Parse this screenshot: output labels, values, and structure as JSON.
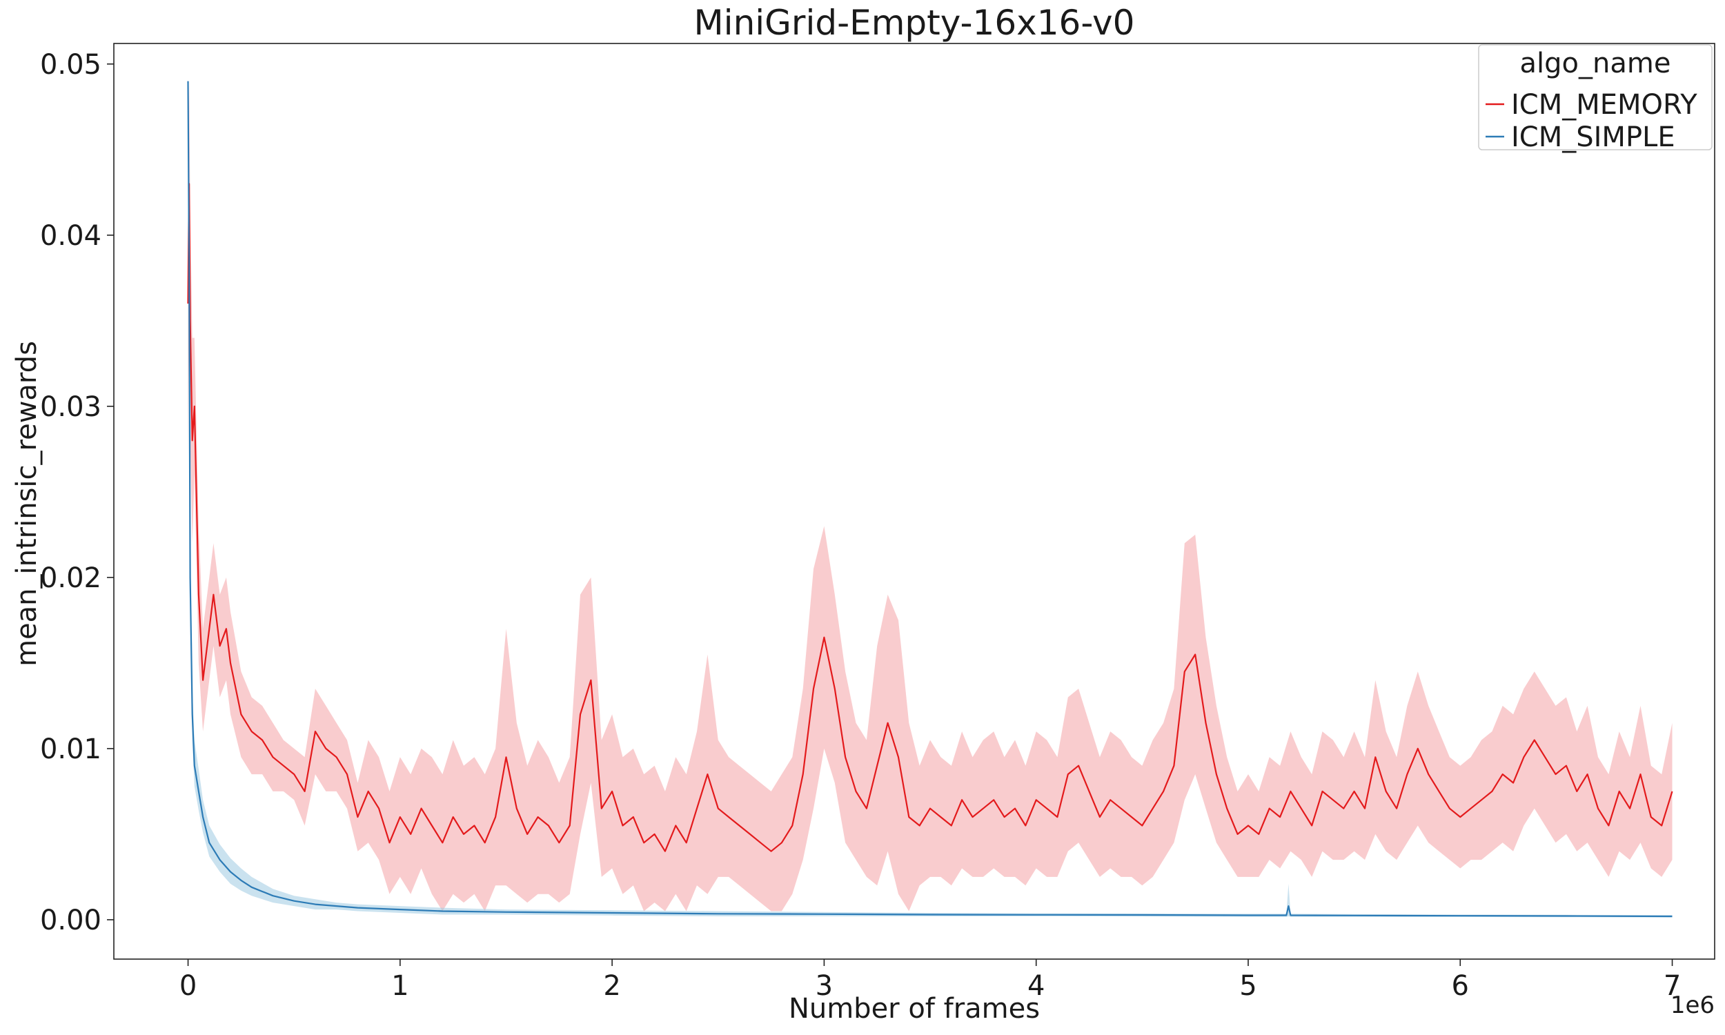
{
  "chart_data": {
    "type": "line",
    "title": "MiniGrid-Empty-16x16-v0",
    "xlabel": "Number of frames",
    "ylabel": "mean_intrinsic_rewards",
    "x_offset_label": "1e6",
    "xlim": [
      -0.35,
      7.2
    ],
    "ylim": [
      -0.0023,
      0.0512
    ],
    "x_ticks": [
      0,
      1,
      2,
      3,
      4,
      5,
      6,
      7
    ],
    "x_tick_labels": [
      "0",
      "1",
      "2",
      "3",
      "4",
      "5",
      "6",
      "7"
    ],
    "y_ticks": [
      0.0,
      0.01,
      0.02,
      0.03,
      0.04,
      0.05
    ],
    "y_tick_labels": [
      "0.00",
      "0.01",
      "0.02",
      "0.03",
      "0.04",
      "0.05"
    ],
    "grid": false,
    "legend": {
      "title": "algo_name",
      "position": "top-right",
      "entries": [
        "ICM_MEMORY",
        "ICM_SIMPLE"
      ]
    },
    "series": [
      {
        "name": "ICM_MEMORY",
        "color": "#e31a1c",
        "band_color": "#f4a3a6",
        "x": [
          0,
          0.005,
          0.01,
          0.02,
          0.03,
          0.05,
          0.07,
          0.1,
          0.12,
          0.15,
          0.18,
          0.2,
          0.25,
          0.3,
          0.35,
          0.4,
          0.45,
          0.5,
          0.55,
          0.6,
          0.65,
          0.7,
          0.75,
          0.8,
          0.85,
          0.9,
          0.95,
          1.0,
          1.05,
          1.1,
          1.15,
          1.2,
          1.25,
          1.3,
          1.35,
          1.4,
          1.45,
          1.5,
          1.55,
          1.6,
          1.65,
          1.7,
          1.75,
          1.8,
          1.85,
          1.9,
          1.95,
          2.0,
          2.05,
          2.1,
          2.15,
          2.2,
          2.25,
          2.3,
          2.35,
          2.4,
          2.45,
          2.5,
          2.55,
          2.6,
          2.65,
          2.7,
          2.75,
          2.8,
          2.85,
          2.9,
          2.95,
          3.0,
          3.05,
          3.1,
          3.15,
          3.2,
          3.25,
          3.3,
          3.35,
          3.4,
          3.45,
          3.5,
          3.55,
          3.6,
          3.65,
          3.7,
          3.75,
          3.8,
          3.85,
          3.9,
          3.95,
          4.0,
          4.05,
          4.1,
          4.15,
          4.2,
          4.25,
          4.3,
          4.35,
          4.4,
          4.45,
          4.5,
          4.55,
          4.6,
          4.65,
          4.7,
          4.75,
          4.8,
          4.85,
          4.9,
          4.95,
          5.0,
          5.05,
          5.1,
          5.15,
          5.2,
          5.25,
          5.3,
          5.35,
          5.4,
          5.45,
          5.5,
          5.55,
          5.6,
          5.65,
          5.7,
          5.75,
          5.8,
          5.85,
          5.9,
          5.95,
          6.0,
          6.05,
          6.1,
          6.15,
          6.2,
          6.25,
          6.3,
          6.35,
          6.4,
          6.45,
          6.5,
          6.55,
          6.6,
          6.65,
          6.7,
          6.75,
          6.8,
          6.85,
          6.9,
          6.95,
          7.0
        ],
        "y": [
          0.036,
          0.043,
          0.035,
          0.028,
          0.03,
          0.019,
          0.014,
          0.017,
          0.019,
          0.016,
          0.017,
          0.015,
          0.012,
          0.011,
          0.0105,
          0.0095,
          0.009,
          0.0085,
          0.0075,
          0.011,
          0.01,
          0.0095,
          0.0085,
          0.006,
          0.0075,
          0.0065,
          0.0045,
          0.006,
          0.005,
          0.0065,
          0.0055,
          0.0045,
          0.006,
          0.005,
          0.0055,
          0.0045,
          0.006,
          0.0095,
          0.0065,
          0.005,
          0.006,
          0.0055,
          0.0045,
          0.0055,
          0.012,
          0.014,
          0.0065,
          0.0075,
          0.0055,
          0.006,
          0.0045,
          0.005,
          0.004,
          0.0055,
          0.0045,
          0.0065,
          0.0085,
          0.0065,
          0.006,
          0.0055,
          0.005,
          0.0045,
          0.004,
          0.0045,
          0.0055,
          0.0085,
          0.0135,
          0.0165,
          0.0135,
          0.0095,
          0.0075,
          0.0065,
          0.009,
          0.0115,
          0.0095,
          0.006,
          0.0055,
          0.0065,
          0.006,
          0.0055,
          0.007,
          0.006,
          0.0065,
          0.007,
          0.006,
          0.0065,
          0.0055,
          0.007,
          0.0065,
          0.006,
          0.0085,
          0.009,
          0.0075,
          0.006,
          0.007,
          0.0065,
          0.006,
          0.0055,
          0.0065,
          0.0075,
          0.009,
          0.0145,
          0.0155,
          0.0115,
          0.0085,
          0.0065,
          0.005,
          0.0055,
          0.005,
          0.0065,
          0.006,
          0.0075,
          0.0065,
          0.0055,
          0.0075,
          0.007,
          0.0065,
          0.0075,
          0.0065,
          0.0095,
          0.0075,
          0.0065,
          0.0085,
          0.01,
          0.0085,
          0.0075,
          0.0065,
          0.006,
          0.0065,
          0.007,
          0.0075,
          0.0085,
          0.008,
          0.0095,
          0.0105,
          0.0095,
          0.0085,
          0.009,
          0.0075,
          0.0085,
          0.0065,
          0.0055,
          0.0075,
          0.0065,
          0.0085,
          0.006,
          0.0055,
          0.0075
        ],
        "y_upper": [
          0.045,
          0.049,
          0.042,
          0.034,
          0.034,
          0.023,
          0.017,
          0.02,
          0.022,
          0.019,
          0.02,
          0.018,
          0.0145,
          0.013,
          0.0125,
          0.0115,
          0.0105,
          0.01,
          0.0095,
          0.0135,
          0.0125,
          0.0115,
          0.0105,
          0.008,
          0.0105,
          0.0095,
          0.0075,
          0.0095,
          0.0085,
          0.01,
          0.0095,
          0.0085,
          0.0105,
          0.009,
          0.0095,
          0.0085,
          0.01,
          0.017,
          0.0115,
          0.009,
          0.0105,
          0.0095,
          0.008,
          0.0095,
          0.019,
          0.02,
          0.0105,
          0.012,
          0.0095,
          0.01,
          0.0085,
          0.009,
          0.0075,
          0.0095,
          0.0085,
          0.011,
          0.0155,
          0.0105,
          0.0095,
          0.009,
          0.0085,
          0.008,
          0.0075,
          0.0085,
          0.0095,
          0.0135,
          0.0205,
          0.023,
          0.019,
          0.0145,
          0.0115,
          0.0105,
          0.016,
          0.019,
          0.0175,
          0.0115,
          0.009,
          0.0105,
          0.0095,
          0.009,
          0.011,
          0.0095,
          0.0105,
          0.011,
          0.0095,
          0.0105,
          0.009,
          0.011,
          0.0105,
          0.0095,
          0.013,
          0.0135,
          0.0115,
          0.0095,
          0.011,
          0.0105,
          0.0095,
          0.009,
          0.0105,
          0.0115,
          0.0135,
          0.022,
          0.0225,
          0.0165,
          0.0125,
          0.0095,
          0.0075,
          0.0085,
          0.0075,
          0.0095,
          0.009,
          0.011,
          0.0095,
          0.0085,
          0.011,
          0.0105,
          0.0095,
          0.011,
          0.0095,
          0.014,
          0.011,
          0.0095,
          0.0125,
          0.0145,
          0.0125,
          0.011,
          0.0095,
          0.009,
          0.0095,
          0.0105,
          0.011,
          0.0125,
          0.012,
          0.0135,
          0.0145,
          0.0135,
          0.0125,
          0.013,
          0.011,
          0.0125,
          0.0095,
          0.0085,
          0.011,
          0.0095,
          0.0125,
          0.009,
          0.0085,
          0.0115
        ],
        "y_lower": [
          0.027,
          0.037,
          0.028,
          0.022,
          0.026,
          0.015,
          0.011,
          0.014,
          0.016,
          0.013,
          0.014,
          0.012,
          0.0095,
          0.0085,
          0.0085,
          0.0075,
          0.0075,
          0.007,
          0.0055,
          0.0085,
          0.0075,
          0.0075,
          0.0065,
          0.004,
          0.0045,
          0.0035,
          0.0015,
          0.0025,
          0.0015,
          0.003,
          0.0015,
          0.0005,
          0.0015,
          0.001,
          0.0015,
          0.0005,
          0.002,
          0.002,
          0.0015,
          0.001,
          0.0015,
          0.0015,
          0.001,
          0.0015,
          0.005,
          0.008,
          0.0025,
          0.003,
          0.0015,
          0.002,
          0.0005,
          0.001,
          0.0005,
          0.0015,
          0.0005,
          0.002,
          0.0015,
          0.0025,
          0.0025,
          0.002,
          0.0015,
          0.001,
          0.0005,
          0.0005,
          0.0015,
          0.0035,
          0.0065,
          0.01,
          0.008,
          0.0045,
          0.0035,
          0.0025,
          0.002,
          0.004,
          0.0015,
          0.0005,
          0.002,
          0.0025,
          0.0025,
          0.002,
          0.003,
          0.0025,
          0.0025,
          0.003,
          0.0025,
          0.0025,
          0.002,
          0.003,
          0.0025,
          0.0025,
          0.004,
          0.0045,
          0.0035,
          0.0025,
          0.003,
          0.0025,
          0.0025,
          0.002,
          0.0025,
          0.0035,
          0.0045,
          0.007,
          0.0085,
          0.0065,
          0.0045,
          0.0035,
          0.0025,
          0.0025,
          0.0025,
          0.0035,
          0.003,
          0.004,
          0.0035,
          0.0025,
          0.004,
          0.0035,
          0.0035,
          0.004,
          0.0035,
          0.005,
          0.004,
          0.0035,
          0.0045,
          0.0055,
          0.0045,
          0.004,
          0.0035,
          0.003,
          0.0035,
          0.0035,
          0.004,
          0.0045,
          0.004,
          0.0055,
          0.0065,
          0.0055,
          0.0045,
          0.005,
          0.004,
          0.0045,
          0.0035,
          0.0025,
          0.004,
          0.0035,
          0.0045,
          0.003,
          0.0025,
          0.0035
        ]
      },
      {
        "name": "ICM_SIMPLE",
        "color": "#2c7bb6",
        "band_color": "#9ecae1",
        "x": [
          0,
          0.005,
          0.01,
          0.02,
          0.03,
          0.05,
          0.07,
          0.1,
          0.15,
          0.2,
          0.25,
          0.3,
          0.4,
          0.5,
          0.6,
          0.7,
          0.8,
          1.0,
          1.2,
          1.5,
          2.0,
          2.5,
          3.0,
          3.5,
          4.0,
          4.5,
          5.0,
          5.18,
          5.19,
          5.2,
          5.5,
          6.0,
          6.5,
          7.0
        ],
        "y": [
          0.049,
          0.038,
          0.02,
          0.012,
          0.009,
          0.0075,
          0.006,
          0.0045,
          0.0035,
          0.0028,
          0.0023,
          0.0019,
          0.0014,
          0.0011,
          0.0009,
          0.0008,
          0.0007,
          0.0006,
          0.0005,
          0.00045,
          0.0004,
          0.00035,
          0.00033,
          0.0003,
          0.00029,
          0.00028,
          0.00026,
          0.00026,
          0.0008,
          0.00026,
          0.00025,
          0.00023,
          0.00022,
          0.0002
        ],
        "y_upper": [
          0.049,
          0.04,
          0.022,
          0.0135,
          0.0105,
          0.0088,
          0.007,
          0.0055,
          0.0044,
          0.0036,
          0.003,
          0.0025,
          0.0018,
          0.0014,
          0.0012,
          0.001,
          0.0009,
          0.0008,
          0.0007,
          0.0006,
          0.00055,
          0.0005,
          0.00045,
          0.0004,
          0.00038,
          0.00037,
          0.00035,
          0.00035,
          0.0021,
          0.00035,
          0.00033,
          0.0003,
          0.00029,
          0.00027
        ],
        "y_lower": [
          0.049,
          0.036,
          0.018,
          0.0105,
          0.0078,
          0.0064,
          0.0051,
          0.0037,
          0.0028,
          0.0021,
          0.0017,
          0.0014,
          0.001,
          0.0008,
          0.0006,
          0.0006,
          0.0005,
          0.0004,
          0.0003,
          0.0003,
          0.00025,
          0.0002,
          0.0002,
          0.0002,
          0.0002,
          0.00019,
          0.00017,
          0.00017,
          0.0002,
          0.00017,
          0.00017,
          0.00016,
          0.00015,
          0.00013
        ]
      }
    ]
  }
}
